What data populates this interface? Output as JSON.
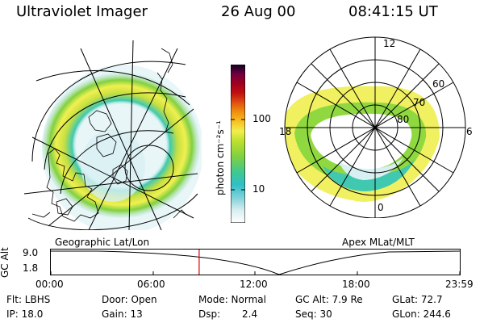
{
  "header": {
    "instrument": "Ultraviolet Imager",
    "date": "26 Aug 00",
    "time": "08:41:15 UT"
  },
  "left_panel": {
    "caption": "Geographic Lat/Lon"
  },
  "right_panel": {
    "caption": "Apex MLat/MLT",
    "mlt_labels": [
      "12",
      "18",
      "6",
      "0"
    ],
    "lat_labels": [
      "60",
      "70",
      "80"
    ]
  },
  "colorbar": {
    "label": "photon cm⁻²s⁻¹",
    "ticks": [
      "100",
      "10"
    ],
    "colors": [
      "#ffffff",
      "#d8eef0",
      "#80d0d8",
      "#30c0c8",
      "#40c890",
      "#80d040",
      "#c0e030",
      "#f0f050",
      "#f8c020",
      "#f09010",
      "#e05010",
      "#c01010",
      "#a00020",
      "#700040",
      "#3a0050",
      "#100020"
    ]
  },
  "altitude_plot": {
    "ylabel": "GC Alt",
    "ymax": "9.0",
    "ymin": "1.8",
    "xticks": [
      "00:00",
      "06:00",
      "12:00",
      "18:00",
      "23:59"
    ],
    "current_time_fraction": 0.3627,
    "marker_color": "#e00000"
  },
  "info": {
    "flt": "Flt: LBHS",
    "ip": "IP: 18.0",
    "door": "Door: Open",
    "gain": "Gain: 13",
    "mode": "Mode: Normal",
    "dsp_label": "Dsp:",
    "dsp_value": "2.4",
    "gcalt": "GC Alt: 7.9 Re",
    "seq": "Seq: 30",
    "glat": "GLat: 72.7",
    "glon": "GLon: 244.6"
  }
}
